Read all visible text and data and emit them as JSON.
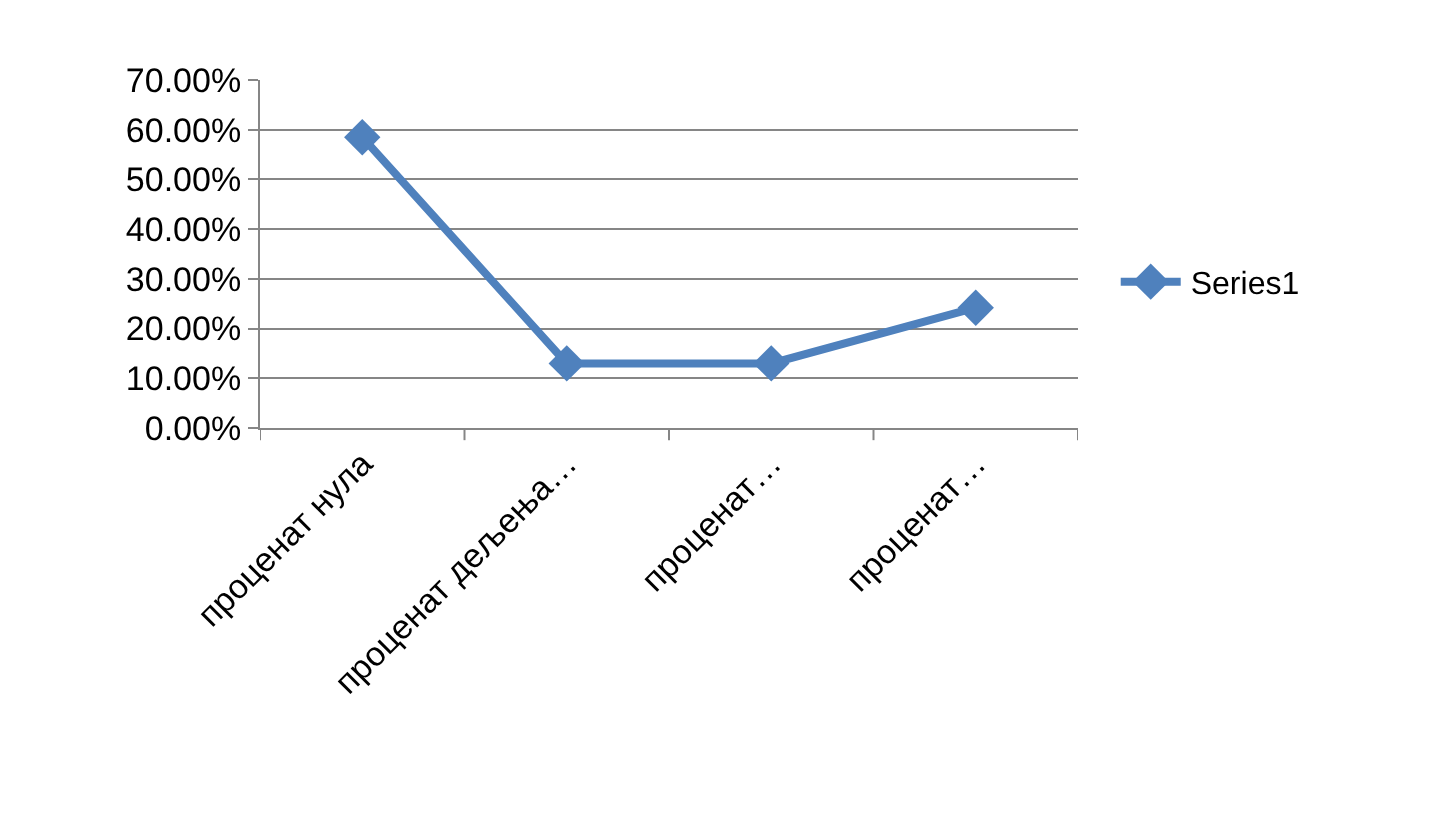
{
  "chart_data": {
    "type": "line",
    "categories": [
      "проценат нула",
      "проценат дељења…",
      "проценат…",
      "проценат…"
    ],
    "series": [
      {
        "name": "Series1",
        "color": "#4f81bd",
        "values": [
          58.5,
          13,
          13,
          24.2
        ]
      }
    ],
    "ylim": [
      0,
      70
    ],
    "yticks": [
      {
        "value": 0,
        "label": "0.00%"
      },
      {
        "value": 10,
        "label": "10.00%"
      },
      {
        "value": 20,
        "label": "20.00%"
      },
      {
        "value": 30,
        "label": "30.00%"
      },
      {
        "value": 40,
        "label": "40.00%"
      },
      {
        "value": 50,
        "label": "50.00%"
      },
      {
        "value": 60,
        "label": "60.00%"
      },
      {
        "value": 70,
        "label": "70.00%"
      }
    ],
    "grid": "y",
    "legend": "right",
    "marker": "diamond",
    "line_style": "solid"
  }
}
